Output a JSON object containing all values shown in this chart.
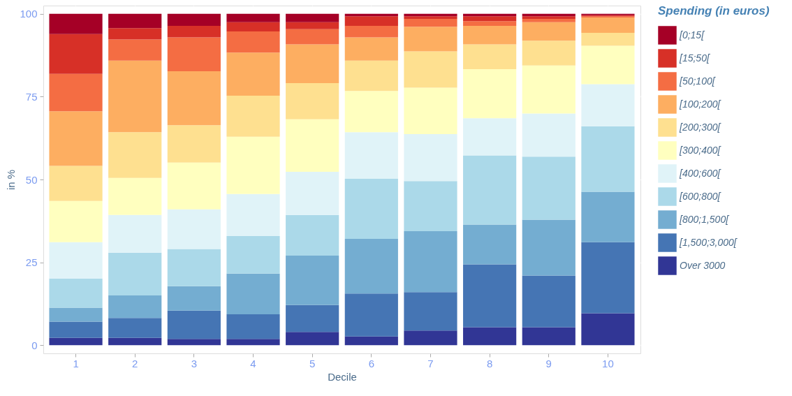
{
  "chart_data": {
    "type": "bar",
    "stacked": true,
    "xlabel": "Decile",
    "ylabel": "in %",
    "legend_title": "Spending (in euros)",
    "legend": "right",
    "grid": true,
    "categories": [
      "1",
      "2",
      "3",
      "4",
      "5",
      "6",
      "7",
      "8",
      "9",
      "10"
    ],
    "ylim": [
      -2.5,
      102.5
    ],
    "yticks": [
      0,
      25,
      50,
      75,
      100
    ],
    "series": [
      {
        "name": "Over 3000",
        "color": "#313695",
        "values": [
          2.2,
          2.2,
          1.9,
          1.9,
          4.0,
          2.6,
          4.4,
          5.4,
          5.4,
          9.6
        ]
      },
      {
        "name": "[1,500;3,000[",
        "color": "#4575b4",
        "values": [
          4.9,
          6.0,
          8.5,
          7.4,
          8.1,
          13.0,
          11.6,
          19.0,
          15.6,
          21.5
        ]
      },
      {
        "name": "[800;1,500[",
        "color": "#74add1",
        "values": [
          4.2,
          6.8,
          7.4,
          12.3,
          14.9,
          16.5,
          18.4,
          12.0,
          16.9,
          15.2
        ]
      },
      {
        "name": "[600;800[",
        "color": "#abd9e9",
        "values": [
          8.8,
          12.9,
          11.2,
          11.3,
          12.3,
          18.1,
          15.1,
          20.9,
          19.0,
          19.8
        ]
      },
      {
        "name": "[400;600[",
        "color": "#e0f3f8",
        "values": [
          11.0,
          11.4,
          12.0,
          12.7,
          13.0,
          14.1,
          14.2,
          11.2,
          13.0,
          12.7
        ]
      },
      {
        "name": "[300;400[",
        "color": "#ffffbf",
        "values": [
          12.4,
          11.2,
          14.1,
          17.3,
          15.9,
          12.4,
          14.0,
          14.8,
          14.5,
          11.6
        ]
      },
      {
        "name": "[200;300[",
        "color": "#fee090",
        "values": [
          10.6,
          13.8,
          11.3,
          12.4,
          10.9,
          9.2,
          11.0,
          7.5,
          7.5,
          3.9
        ]
      },
      {
        "name": "[100;200[",
        "color": "#fdae61",
        "values": [
          16.5,
          21.6,
          16.3,
          13.0,
          11.7,
          7.0,
          7.4,
          5.6,
          5.6,
          4.6
        ]
      },
      {
        "name": "[50;100[",
        "color": "#f46d43",
        "values": [
          11.3,
          6.4,
          10.2,
          6.4,
          4.6,
          3.5,
          2.4,
          1.4,
          1.0,
          0.4
        ]
      },
      {
        "name": "[15;50[",
        "color": "#d73027",
        "values": [
          12.0,
          3.4,
          3.5,
          2.8,
          2.1,
          2.9,
          0.8,
          1.5,
          0.8,
          0.3
        ]
      },
      {
        "name": "[0;15[",
        "color": "#a50026",
        "values": [
          6.1,
          4.3,
          3.6,
          2.5,
          2.5,
          0.7,
          0.7,
          0.7,
          0.7,
          0.4
        ]
      }
    ]
  }
}
